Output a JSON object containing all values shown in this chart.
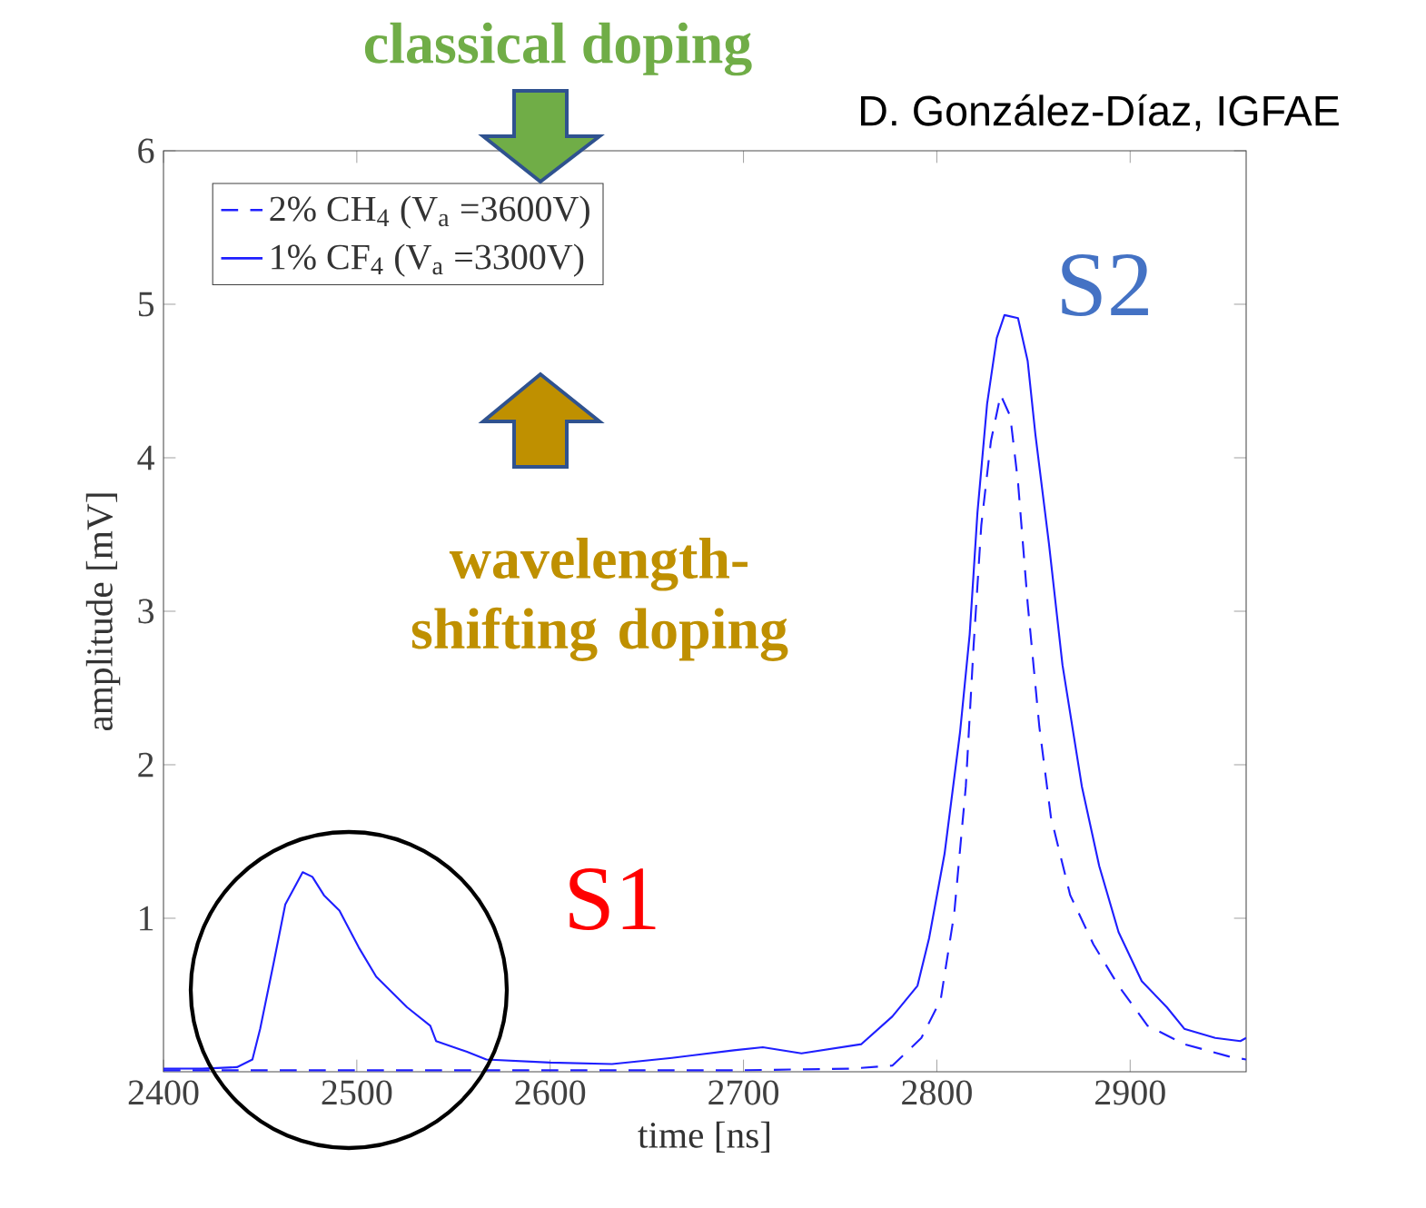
{
  "chart_data": {
    "type": "line",
    "xlabel": "time [ns]",
    "ylabel": "amplitude [mV]",
    "xlim": [
      2400,
      2960
    ],
    "ylim": [
      0,
      6
    ],
    "xticks": [
      2400,
      2500,
      2600,
      2700,
      2800,
      2900
    ],
    "yticks": [
      1,
      2,
      3,
      4,
      5,
      6
    ],
    "legend": "top left",
    "grid": false,
    "marker": "none",
    "annotations": [
      "classical doping",
      "D. González-Díaz, IGFAE",
      "wavelength-shifting doping",
      "S2",
      "S1"
    ],
    "series": [
      {
        "name": "2% CH$_{4}$ (V$_{a}$ =3600V)",
        "color": "#1f1fff",
        "line_style": "dashed",
        "x": [
          2400,
          2500,
          2600,
          2700,
          2755,
          2777,
          2792,
          2802,
          2809,
          2815,
          2819,
          2823,
          2828,
          2833,
          2838,
          2842,
          2847,
          2853,
          2859,
          2869,
          2881,
          2894,
          2909,
          2928,
          2951,
          2960
        ],
        "values": [
          0.01,
          0.01,
          0.01,
          0.01,
          0.02,
          0.04,
          0.22,
          0.47,
          1.03,
          1.86,
          2.77,
          3.56,
          4.11,
          4.41,
          4.27,
          3.84,
          3.05,
          2.25,
          1.66,
          1.15,
          0.83,
          0.56,
          0.3,
          0.18,
          0.1,
          0.08
        ]
      },
      {
        "name": "1% CF$_{4}$  (V$_{a}$ =3300V)",
        "color": "#1f1fff",
        "line_style": "solid",
        "x": [
          2400,
          2420,
          2438,
          2446,
          2450,
          2457,
          2463,
          2472,
          2477,
          2483,
          2491,
          2501,
          2510,
          2526,
          2538,
          2541,
          2557,
          2567,
          2600,
          2632,
          2663,
          2695,
          2710,
          2730,
          2761,
          2777,
          2790,
          2796,
          2804,
          2812,
          2817,
          2821,
          2826,
          2831,
          2835,
          2842,
          2847,
          2851,
          2858,
          2865,
          2875,
          2884,
          2894,
          2906,
          2919,
          2928,
          2944,
          2957,
          2960
        ],
        "values": [
          0.02,
          0.02,
          0.03,
          0.08,
          0.28,
          0.71,
          1.09,
          1.3,
          1.27,
          1.15,
          1.05,
          0.81,
          0.62,
          0.42,
          0.3,
          0.2,
          0.13,
          0.08,
          0.06,
          0.05,
          0.09,
          0.14,
          0.16,
          0.12,
          0.18,
          0.36,
          0.56,
          0.87,
          1.42,
          2.21,
          2.85,
          3.64,
          4.35,
          4.78,
          4.93,
          4.91,
          4.63,
          4.15,
          3.44,
          2.65,
          1.86,
          1.34,
          0.91,
          0.59,
          0.42,
          0.28,
          0.22,
          0.2,
          0.22
        ]
      }
    ]
  }
}
